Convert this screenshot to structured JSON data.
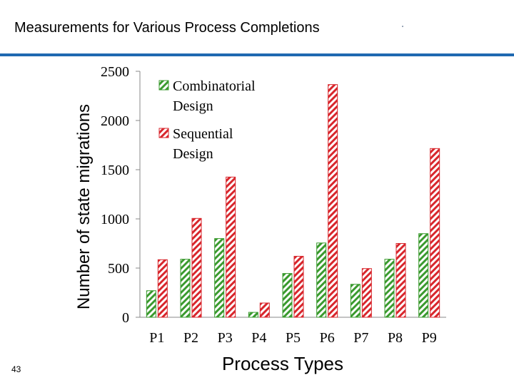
{
  "slide": {
    "title": "Measurements for Various Process Completions",
    "page_number": "43"
  },
  "colors": {
    "title_rule": "#1f69b1",
    "combinatorial": "#3a9a2e",
    "sequential": "#d8262c"
  },
  "chart_data": {
    "type": "bar",
    "title": "",
    "xlabel": "Process Types",
    "ylabel": "Number of state migrations",
    "categories": [
      "P1",
      "P2",
      "P3",
      "P4",
      "P5",
      "P6",
      "P7",
      "P8",
      "P9"
    ],
    "series": [
      {
        "name_lines": [
          "Combinatorial",
          "Design"
        ],
        "color": "#3a9a2e",
        "values": [
          270,
          590,
          800,
          50,
          445,
          755,
          335,
          590,
          850
        ]
      },
      {
        "name_lines": [
          "Sequential",
          "Design"
        ],
        "color": "#d8262c",
        "values": [
          585,
          1005,
          1425,
          145,
          620,
          2365,
          495,
          750,
          1715
        ]
      }
    ],
    "ylim": [
      0,
      2500
    ],
    "yticks": [
      "0",
      "500",
      "1000",
      "1500",
      "2000",
      "2500"
    ],
    "grid": false,
    "legend_position": "top-left",
    "bar_pattern": "diagonal-hatch"
  }
}
